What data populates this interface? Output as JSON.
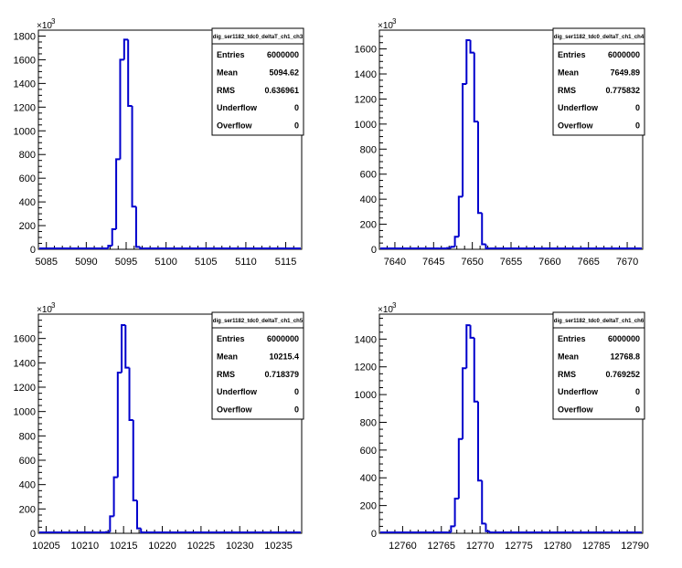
{
  "chart_data": [
    {
      "type": "bar",
      "title": "dig_ser1182_tdc0_deltaT_ch1_ch3",
      "xlim": [
        5084,
        5117
      ],
      "ylim": [
        0,
        1850
      ],
      "y_exponent_label": "×10",
      "y_exponent_power": "3",
      "x_ticks": [
        5085,
        5090,
        5095,
        5100,
        5105,
        5110,
        5115
      ],
      "y_ticks": [
        0,
        200,
        400,
        600,
        800,
        1000,
        1200,
        1400,
        1600,
        1800
      ],
      "bin_width": 0.5,
      "bins": [
        {
          "x": 5092.5,
          "value": 5
        },
        {
          "x": 5093.0,
          "value": 30
        },
        {
          "x": 5093.5,
          "value": 170
        },
        {
          "x": 5094.0,
          "value": 760
        },
        {
          "x": 5094.5,
          "value": 1600
        },
        {
          "x": 5095.0,
          "value": 1770
        },
        {
          "x": 5095.5,
          "value": 1210
        },
        {
          "x": 5096.0,
          "value": 360
        },
        {
          "x": 5096.5,
          "value": 20
        },
        {
          "x": 5097.0,
          "value": 5
        }
      ],
      "stats": {
        "rows": [
          {
            "label": "Entries",
            "value": "6000000"
          },
          {
            "label": "Mean",
            "value": "5094.62"
          },
          {
            "label": "RMS",
            "value": "0.636961"
          },
          {
            "label": "Underflow",
            "value": "0"
          },
          {
            "label": "Overflow",
            "value": "0"
          }
        ]
      }
    },
    {
      "type": "bar",
      "title": "dig_ser1182_tdc0_deltaT_ch1_ch4",
      "xlim": [
        7638,
        7672
      ],
      "ylim": [
        0,
        1750
      ],
      "y_exponent_label": "×10",
      "y_exponent_power": "3",
      "x_ticks": [
        7640,
        7645,
        7650,
        7655,
        7660,
        7665,
        7670
      ],
      "y_ticks": [
        0,
        200,
        400,
        600,
        800,
        1000,
        1200,
        1400,
        1600
      ],
      "bin_width": 0.5,
      "bins": [
        {
          "x": 7645.5,
          "value": 5
        },
        {
          "x": 7646.0,
          "value": 5
        },
        {
          "x": 7646.5,
          "value": 5
        },
        {
          "x": 7647.0,
          "value": 10
        },
        {
          "x": 7647.5,
          "value": 20
        },
        {
          "x": 7648.0,
          "value": 100
        },
        {
          "x": 7648.5,
          "value": 420
        },
        {
          "x": 7649.0,
          "value": 1320
        },
        {
          "x": 7649.5,
          "value": 1670
        },
        {
          "x": 7650.0,
          "value": 1570
        },
        {
          "x": 7650.5,
          "value": 1020
        },
        {
          "x": 7651.0,
          "value": 290
        },
        {
          "x": 7651.5,
          "value": 40
        },
        {
          "x": 7652.0,
          "value": 5
        }
      ],
      "stats": {
        "rows": [
          {
            "label": "Entries",
            "value": "6000000"
          },
          {
            "label": "Mean",
            "value": "7649.89"
          },
          {
            "label": "RMS",
            "value": "0.775832"
          },
          {
            "label": "Underflow",
            "value": "0"
          },
          {
            "label": "Overflow",
            "value": "0"
          }
        ]
      }
    },
    {
      "type": "bar",
      "title": "dig_ser1182_tdc0_deltaT_ch1_ch5",
      "xlim": [
        10204,
        10238
      ],
      "ylim": [
        0,
        1800
      ],
      "y_exponent_label": "×10",
      "y_exponent_power": "3",
      "x_ticks": [
        10205,
        10210,
        10215,
        10220,
        10225,
        10230,
        10235
      ],
      "y_ticks": [
        0,
        200,
        400,
        600,
        800,
        1000,
        1200,
        1400,
        1600
      ],
      "bin_width": 0.5,
      "bins": [
        {
          "x": 10213.0,
          "value": 10
        },
        {
          "x": 10213.5,
          "value": 140
        },
        {
          "x": 10214.0,
          "value": 460
        },
        {
          "x": 10214.5,
          "value": 1320
        },
        {
          "x": 10215.0,
          "value": 1710
        },
        {
          "x": 10215.5,
          "value": 1360
        },
        {
          "x": 10216.0,
          "value": 930
        },
        {
          "x": 10216.5,
          "value": 270
        },
        {
          "x": 10217.0,
          "value": 40
        },
        {
          "x": 10217.5,
          "value": 5
        }
      ],
      "stats": {
        "rows": [
          {
            "label": "Entries",
            "value": "6000000"
          },
          {
            "label": "Mean",
            "value": "10215.4"
          },
          {
            "label": "RMS",
            "value": "0.718379"
          },
          {
            "label": "Underflow",
            "value": "0"
          },
          {
            "label": "Overflow",
            "value": "0"
          }
        ]
      }
    },
    {
      "type": "bar",
      "title": "dig_ser1182_tdc0_deltaT_ch1_ch6",
      "xlim": [
        12757,
        12791
      ],
      "ylim": [
        0,
        1580
      ],
      "y_exponent_label": "×10",
      "y_exponent_power": "3",
      "x_ticks": [
        12760,
        12765,
        12770,
        12775,
        12780,
        12785,
        12790
      ],
      "y_ticks": [
        0,
        200,
        400,
        600,
        800,
        1000,
        1200,
        1400
      ],
      "bin_width": 0.5,
      "bins": [
        {
          "x": 12766.0,
          "value": 5
        },
        {
          "x": 12766.5,
          "value": 50
        },
        {
          "x": 12767.0,
          "value": 250
        },
        {
          "x": 12767.5,
          "value": 680
        },
        {
          "x": 12768.0,
          "value": 1190
        },
        {
          "x": 12768.5,
          "value": 1500
        },
        {
          "x": 12769.0,
          "value": 1410
        },
        {
          "x": 12769.5,
          "value": 950
        },
        {
          "x": 12770.0,
          "value": 380
        },
        {
          "x": 12770.5,
          "value": 70
        },
        {
          "x": 12771.0,
          "value": 15
        },
        {
          "x": 12771.5,
          "value": 5
        }
      ],
      "stats": {
        "rows": [
          {
            "label": "Entries",
            "value": "6000000"
          },
          {
            "label": "Mean",
            "value": "12768.8"
          },
          {
            "label": "RMS",
            "value": "0.769252"
          },
          {
            "label": "Underflow",
            "value": "0"
          },
          {
            "label": "Overflow",
            "value": "0"
          }
        ]
      }
    }
  ],
  "colors": {
    "histogram_line": "#0000cc",
    "axis": "#000000",
    "background": "#ffffff"
  }
}
